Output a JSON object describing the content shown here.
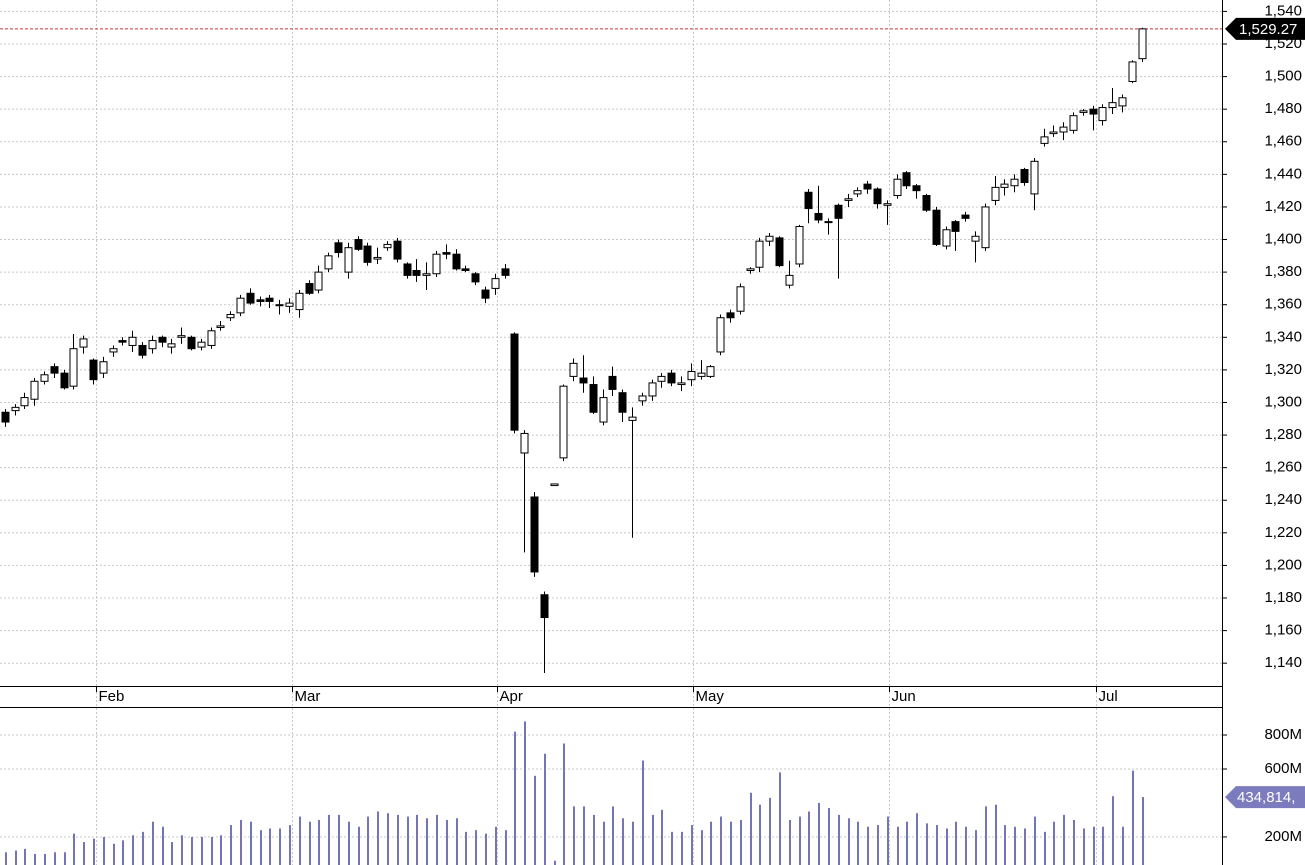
{
  "chart_data": [
    {
      "type": "candlestick",
      "xlim": [
        -0.5,
        124.2
      ],
      "xticks": [
        {
          "value": 9.3,
          "label": "Feb"
        },
        {
          "value": 29.3,
          "label": "Mar"
        },
        {
          "value": 50.2,
          "label": "Apr"
        },
        {
          "value": 70.2,
          "label": "May"
        },
        {
          "value": 90.2,
          "label": "Jun"
        },
        {
          "value": 111.3,
          "label": "Jul"
        }
      ],
      "ylim": [
        1126,
        1547
      ],
      "yticks": [
        {
          "value": 1140,
          "label": "1,140"
        },
        {
          "value": 1160,
          "label": "1,160"
        },
        {
          "value": 1180,
          "label": "1,180"
        },
        {
          "value": 1200,
          "label": "1,200"
        },
        {
          "value": 1220,
          "label": "1,220"
        },
        {
          "value": 1240,
          "label": "1,240"
        },
        {
          "value": 1260,
          "label": "1,260"
        },
        {
          "value": 1280,
          "label": "1,280"
        },
        {
          "value": 1300,
          "label": "1,300"
        },
        {
          "value": 1320,
          "label": "1,320"
        },
        {
          "value": 1340,
          "label": "1,340"
        },
        {
          "value": 1360,
          "label": "1,360"
        },
        {
          "value": 1380,
          "label": "1,380"
        },
        {
          "value": 1400,
          "label": "1,400"
        },
        {
          "value": 1420,
          "label": "1,420"
        },
        {
          "value": 1440,
          "label": "1,440"
        },
        {
          "value": 1460,
          "label": "1,460"
        },
        {
          "value": 1480,
          "label": "1,480"
        },
        {
          "value": 1500,
          "label": "1,500"
        },
        {
          "value": 1520,
          "label": "1,520"
        },
        {
          "value": 1540,
          "label": "1,540"
        }
      ],
      "grid": true,
      "up_color": "#ffffff",
      "down_color": "#000000",
      "last_line_color": "#d0303a",
      "last_tag_color": "#000000",
      "last_label": "1,529.27",
      "open": [
        1294,
        1295,
        1298,
        1302,
        1313,
        1322,
        1318,
        1310,
        1334,
        1326,
        1318,
        1331,
        1338,
        1335,
        1335,
        1333,
        1340,
        1334,
        1340,
        1340,
        1334,
        1335,
        1346,
        1352,
        1355,
        1367,
        1363,
        1364,
        1360,
        1359,
        1357,
        1373,
        1369,
        1382,
        1398,
        1380,
        1400,
        1396,
        1388,
        1395,
        1399,
        1385,
        1381,
        1378,
        1379,
        1392,
        1391,
        1382,
        1379,
        1369,
        1370,
        1382,
        1342,
        1269,
        1242,
        1182,
        1249,
        1266,
        1316,
        1315,
        1311,
        1288,
        1316,
        1306,
        1289,
        1301,
        1304,
        1313,
        1318,
        1311,
        1314,
        1316,
        1316,
        1331,
        1355,
        1356,
        1381,
        1383,
        1399,
        1401,
        1372,
        1385,
        1429,
        1416,
        1411,
        1421,
        1424,
        1428,
        1434,
        1431,
        1421,
        1427,
        1441,
        1433,
        1427,
        1418,
        1396,
        1411,
        1415,
        1399,
        1395,
        1424,
        1432,
        1433,
        1443,
        1428,
        1459,
        1465,
        1466,
        1467,
        1478,
        1480,
        1473,
        1481,
        1482,
        1497,
        1511
      ],
      "high": [
        1296,
        1299,
        1306,
        1315,
        1319,
        1324,
        1320,
        1342,
        1341,
        1327,
        1328,
        1335,
        1340,
        1344,
        1337,
        1341,
        1341,
        1339,
        1346,
        1341,
        1339,
        1346,
        1350,
        1356,
        1366,
        1370,
        1365,
        1366,
        1363,
        1364,
        1369,
        1375,
        1384,
        1392,
        1400,
        1398,
        1402,
        1398,
        1395,
        1399,
        1401,
        1386,
        1388,
        1386,
        1393,
        1397,
        1394,
        1384,
        1380,
        1371,
        1379,
        1385,
        1343,
        1283,
        1245,
        1184,
        1250,
        1311,
        1327,
        1329,
        1316,
        1308,
        1322,
        1308,
        1297,
        1306,
        1314,
        1318,
        1320,
        1316,
        1324,
        1326,
        1323,
        1354,
        1357,
        1373,
        1383,
        1401,
        1404,
        1402,
        1387,
        1409,
        1431,
        1433,
        1413,
        1422,
        1428,
        1432,
        1436,
        1432,
        1424,
        1440,
        1442,
        1434,
        1428,
        1420,
        1408,
        1412,
        1417,
        1405,
        1422,
        1439,
        1437,
        1440,
        1444,
        1450,
        1468,
        1470,
        1472,
        1478,
        1480,
        1482,
        1483,
        1493,
        1489,
        1510,
        1530
      ],
      "low": [
        1285,
        1292,
        1296,
        1298,
        1311,
        1315,
        1308,
        1308,
        1330,
        1311,
        1315,
        1328,
        1335,
        1331,
        1327,
        1330,
        1334,
        1330,
        1336,
        1332,
        1332,
        1333,
        1344,
        1350,
        1353,
        1360,
        1359,
        1358,
        1354,
        1355,
        1352,
        1366,
        1367,
        1380,
        1389,
        1376,
        1393,
        1384,
        1385,
        1393,
        1386,
        1376,
        1374,
        1369,
        1377,
        1388,
        1381,
        1380,
        1372,
        1361,
        1366,
        1376,
        1281,
        1208,
        1193,
        1134,
        1249,
        1264,
        1313,
        1306,
        1293,
        1286,
        1304,
        1288,
        1217,
        1298,
        1301,
        1309,
        1310,
        1307,
        1310,
        1314,
        1315,
        1329,
        1349,
        1354,
        1379,
        1380,
        1396,
        1383,
        1370,
        1383,
        1410,
        1410,
        1403,
        1376,
        1420,
        1426,
        1428,
        1419,
        1409,
        1425,
        1431,
        1425,
        1417,
        1396,
        1394,
        1393,
        1411,
        1386,
        1393,
        1421,
        1427,
        1429,
        1433,
        1418,
        1457,
        1463,
        1461,
        1465,
        1476,
        1467,
        1470,
        1477,
        1478,
        1496,
        1509
      ],
      "close": [
        1288,
        1297,
        1303,
        1313,
        1317,
        1318,
        1309,
        1333,
        1339,
        1314,
        1325,
        1333,
        1337,
        1340,
        1329,
        1338,
        1337,
        1336,
        1341,
        1333,
        1337,
        1344,
        1347,
        1354,
        1364,
        1361,
        1362,
        1362,
        1360,
        1361,
        1367,
        1367,
        1380,
        1390,
        1392,
        1395,
        1394,
        1386,
        1389,
        1397,
        1388,
        1378,
        1378,
        1379,
        1391,
        1391,
        1382,
        1381,
        1374,
        1364,
        1376,
        1378,
        1283,
        1281,
        1196,
        1168,
        1250,
        1310,
        1324,
        1312,
        1294,
        1303,
        1308,
        1294,
        1291,
        1304,
        1312,
        1316,
        1312,
        1312,
        1319,
        1318,
        1322,
        1352,
        1352,
        1371,
        1382,
        1399,
        1402,
        1384,
        1378,
        1408,
        1419,
        1412,
        1411,
        1413,
        1425,
        1430,
        1431,
        1422,
        1422,
        1437,
        1433,
        1430,
        1418,
        1397,
        1406,
        1405,
        1413,
        1402,
        1420,
        1432,
        1434,
        1437,
        1435,
        1448,
        1463,
        1466,
        1469,
        1476,
        1479,
        1477,
        1481,
        1484,
        1487,
        1509,
        1529.27
      ]
    },
    {
      "type": "bar",
      "xlim": [
        -0.5,
        124.2
      ],
      "ylim": [
        35,
        959
      ],
      "yticks": [
        {
          "value": 200,
          "label": "200M"
        },
        {
          "value": 600,
          "label": "600M"
        },
        {
          "value": 800,
          "label": "800M"
        }
      ],
      "grid": true,
      "color": "#7474b8",
      "last_tag_color": "#7b7bbd",
      "last_label": "434,814,",
      "values": [
        110,
        120,
        130,
        100,
        100,
        110,
        110,
        220,
        170,
        190,
        200,
        160,
        180,
        210,
        230,
        290,
        260,
        170,
        210,
        200,
        200,
        200,
        210,
        270,
        300,
        290,
        240,
        250,
        250,
        270,
        320,
        290,
        300,
        330,
        330,
        290,
        260,
        320,
        350,
        340,
        330,
        320,
        330,
        310,
        330,
        300,
        310,
        230,
        240,
        220,
        260,
        240,
        820,
        880,
        560,
        690,
        60,
        750,
        380,
        380,
        330,
        290,
        380,
        310,
        290,
        650,
        330,
        360,
        230,
        230,
        270,
        240,
        290,
        320,
        290,
        300,
        460,
        390,
        430,
        580,
        300,
        320,
        350,
        400,
        370,
        330,
        310,
        290,
        260,
        270,
        320,
        260,
        290,
        340,
        280,
        270,
        250,
        290,
        260,
        240,
        380,
        390,
        270,
        260,
        250,
        320,
        230,
        290,
        330,
        300,
        250,
        260,
        260,
        440,
        260,
        590,
        434.814
      ]
    }
  ]
}
